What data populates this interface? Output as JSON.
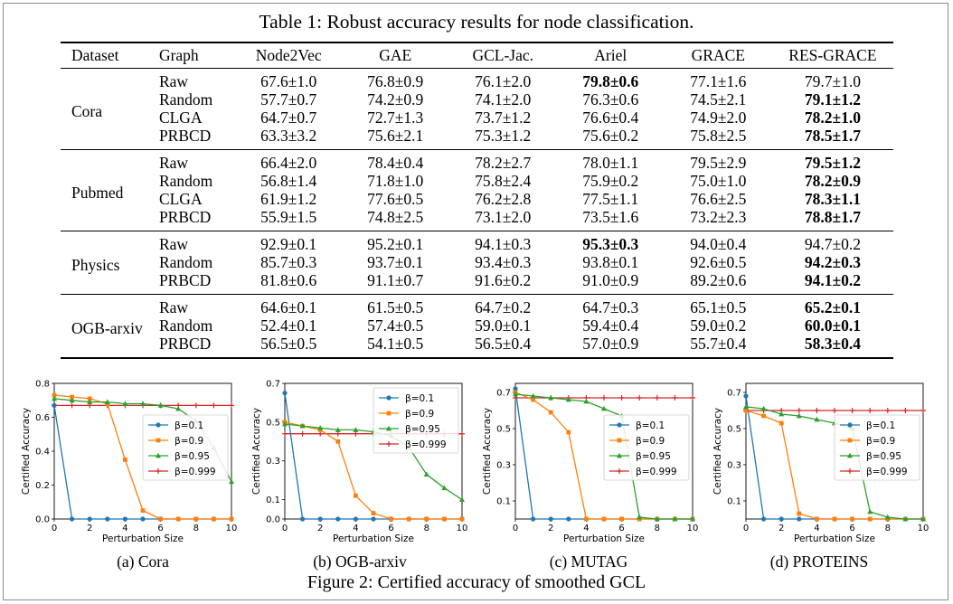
{
  "table": {
    "caption": "Table 1: Robust accuracy results for node classification.",
    "headers": [
      "Dataset",
      "Graph",
      "Node2Vec",
      "GAE",
      "GCL-Jac.",
      "Ariel",
      "GRACE",
      "RES-GRACE"
    ],
    "groups": [
      {
        "dataset": "Cora",
        "rows": [
          {
            "graph": "Raw",
            "cells": [
              "67.6±1.0",
              "76.8±0.9",
              "76.1±2.0",
              "79.8±0.6",
              "77.1±1.6",
              "79.7±1.0"
            ],
            "bold": 3
          },
          {
            "graph": "Random",
            "cells": [
              "57.7±0.7",
              "74.2±0.9",
              "74.1±2.0",
              "76.3±0.6",
              "74.5±2.1",
              "79.1±1.2"
            ],
            "bold": 5
          },
          {
            "graph": "CLGA",
            "cells": [
              "64.7±0.7",
              "72.7±1.3",
              "73.7±1.2",
              "76.6±0.4",
              "74.9±2.0",
              "78.2±1.0"
            ],
            "bold": 5
          },
          {
            "graph": "PRBCD",
            "cells": [
              "63.3±3.2",
              "75.6±2.1",
              "75.3±1.2",
              "75.6±0.2",
              "75.8±2.5",
              "78.5±1.7"
            ],
            "bold": 5
          }
        ]
      },
      {
        "dataset": "Pubmed",
        "rows": [
          {
            "graph": "Raw",
            "cells": [
              "66.4±2.0",
              "78.4±0.4",
              "78.2±2.7",
              "78.0±1.1",
              "79.5±2.9",
              "79.5±1.2"
            ],
            "bold": 5
          },
          {
            "graph": "Random",
            "cells": [
              "56.8±1.4",
              "71.8±1.0",
              "75.8±2.4",
              "75.9±0.2",
              "75.0±1.0",
              "78.2±0.9"
            ],
            "bold": 5
          },
          {
            "graph": "CLGA",
            "cells": [
              "61.9±1.2",
              "77.6±0.5",
              "76.2±2.8",
              "77.5±1.1",
              "76.6±2.5",
              "78.3±1.1"
            ],
            "bold": 5
          },
          {
            "graph": "PRBCD",
            "cells": [
              "55.9±1.5",
              "74.8±2.5",
              "73.1±2.0",
              "73.5±1.6",
              "73.2±2.3",
              "78.8±1.7"
            ],
            "bold": 5
          }
        ]
      },
      {
        "dataset": "Physics",
        "rows": [
          {
            "graph": "Raw",
            "cells": [
              "92.9±0.1",
              "95.2±0.1",
              "94.1±0.3",
              "95.3±0.3",
              "94.0±0.4",
              "94.7±0.2"
            ],
            "bold": 3
          },
          {
            "graph": "Random",
            "cells": [
              "85.7±0.3",
              "93.7±0.1",
              "93.4±0.3",
              "93.8±0.1",
              "92.6±0.5",
              "94.2±0.3"
            ],
            "bold": 5
          },
          {
            "graph": "PRBCD",
            "cells": [
              "81.8±0.6",
              "91.1±0.7",
              "91.6±0.2",
              "91.0±0.9",
              "89.2±0.6",
              "94.1±0.2"
            ],
            "bold": 5
          }
        ]
      },
      {
        "dataset": "OGB-arxiv",
        "rows": [
          {
            "graph": "Raw",
            "cells": [
              "64.6±0.1",
              "61.5±0.5",
              "64.7±0.2",
              "64.7±0.3",
              "65.1±0.5",
              "65.2±0.1"
            ],
            "bold": 5
          },
          {
            "graph": "Random",
            "cells": [
              "52.4±0.1",
              "57.4±0.5",
              "59.0±0.1",
              "59.4±0.4",
              "59.0±0.2",
              "60.0±0.1"
            ],
            "bold": 5
          },
          {
            "graph": "PRBCD",
            "cells": [
              "56.5±0.5",
              "54.1±0.5",
              "56.5±0.4",
              "57.0±0.9",
              "55.7±0.4",
              "58.3±0.4"
            ],
            "bold": 5
          }
        ]
      }
    ]
  },
  "figure": {
    "caption": "Figure 2: Certified accuracy of smoothed GCL",
    "series_colors": [
      "#1f77b4",
      "#ff7f0e",
      "#2ca02c",
      "#d62728"
    ],
    "series_markers": [
      "circle",
      "square",
      "triangle",
      "plus"
    ]
  },
  "chart_data": [
    {
      "type": "line",
      "subcaption": "(a) Cora",
      "xlabel": "Perturbation Size",
      "ylabel": "Certified Accuracy",
      "xlim": [
        0,
        10
      ],
      "ylim": [
        0,
        0.8
      ],
      "xticks": [
        0,
        2,
        4,
        6,
        8,
        10
      ],
      "yticks": [
        0.0,
        0.2,
        0.4,
        0.6,
        0.8
      ],
      "legend_position": "center-right",
      "x": [
        0,
        1,
        2,
        3,
        4,
        5,
        6,
        7,
        8,
        9,
        10
      ],
      "series": [
        {
          "name": "β=0.1",
          "values": [
            0.67,
            0,
            0,
            0,
            0,
            0,
            0,
            0,
            0,
            0,
            0
          ]
        },
        {
          "name": "β=0.9",
          "values": [
            0.73,
            0.72,
            0.71,
            0.68,
            0.35,
            0.05,
            0,
            0,
            0,
            0,
            0
          ]
        },
        {
          "name": "β=0.95",
          "values": [
            0.71,
            0.7,
            0.69,
            0.69,
            0.68,
            0.68,
            0.67,
            0.65,
            0.58,
            0.42,
            0.22
          ]
        },
        {
          "name": "β=0.999",
          "values": [
            0.67,
            0.67,
            0.67,
            0.67,
            0.67,
            0.67,
            0.67,
            0.67,
            0.67,
            0.67,
            0.67
          ]
        }
      ]
    },
    {
      "type": "line",
      "subcaption": "(b) OGB-arxiv",
      "xlabel": "Perturbation Size",
      "ylabel": "Certified Accuracy",
      "xlim": [
        0,
        10
      ],
      "ylim": [
        0,
        0.7
      ],
      "xticks": [
        0,
        2,
        4,
        6,
        8,
        10
      ],
      "yticks": [
        0.0,
        0.1,
        0.3,
        0.5,
        0.7
      ],
      "legend_position": "top-right",
      "x": [
        0,
        1,
        2,
        3,
        4,
        5,
        6,
        7,
        8,
        9,
        10
      ],
      "series": [
        {
          "name": "β=0.1",
          "values": [
            0.65,
            0,
            0,
            0,
            0,
            0,
            0,
            0,
            0,
            0,
            0
          ]
        },
        {
          "name": "β=0.9",
          "values": [
            0.5,
            0.48,
            0.46,
            0.4,
            0.12,
            0.03,
            0,
            0,
            0,
            0,
            0
          ]
        },
        {
          "name": "β=0.95",
          "values": [
            0.49,
            0.48,
            0.47,
            0.46,
            0.46,
            0.45,
            0.43,
            0.37,
            0.23,
            0.16,
            0.1
          ]
        },
        {
          "name": "β=0.999",
          "values": [
            0.44,
            0.44,
            0.44,
            0.44,
            0.44,
            0.44,
            0.44,
            0.44,
            0.44,
            0.44,
            0.44
          ]
        }
      ]
    },
    {
      "type": "line",
      "subcaption": "(c) MUTAG",
      "xlabel": "Perturbation Size",
      "ylabel": "Certified Accuracy",
      "xlim": [
        0,
        10
      ],
      "ylim": [
        0,
        0.75
      ],
      "xticks": [
        0,
        2,
        4,
        6,
        8,
        10
      ],
      "yticks": [
        0.1,
        0.3,
        0.5,
        0.7
      ],
      "legend_position": "center-right",
      "x": [
        0,
        1,
        2,
        3,
        4,
        5,
        6,
        7,
        8,
        9,
        10
      ],
      "series": [
        {
          "name": "β=0.1",
          "values": [
            0.72,
            0,
            0,
            0,
            0,
            0,
            0,
            0,
            0,
            0,
            0
          ]
        },
        {
          "name": "β=0.9",
          "values": [
            0.7,
            0.66,
            0.59,
            0.48,
            0,
            0,
            0,
            0,
            0,
            0,
            0
          ]
        },
        {
          "name": "β=0.95",
          "values": [
            0.69,
            0.68,
            0.67,
            0.66,
            0.65,
            0.61,
            0.57,
            0.01,
            0,
            0,
            0
          ]
        },
        {
          "name": "β=0.999",
          "values": [
            0.67,
            0.67,
            0.67,
            0.67,
            0.67,
            0.67,
            0.67,
            0.67,
            0.67,
            0.67,
            0.67
          ]
        }
      ]
    },
    {
      "type": "line",
      "subcaption": "(d) PROTEINS",
      "xlabel": "Perturbation Size",
      "ylabel": "Certified Accuracy",
      "xlim": [
        0,
        10
      ],
      "ylim": [
        0,
        0.75
      ],
      "xticks": [
        0,
        2,
        4,
        6,
        8,
        10
      ],
      "yticks": [
        0.1,
        0.3,
        0.5,
        0.7
      ],
      "legend_position": "center-right",
      "x": [
        0,
        1,
        2,
        3,
        4,
        5,
        6,
        7,
        8,
        9,
        10
      ],
      "series": [
        {
          "name": "β=0.1",
          "values": [
            0.68,
            0,
            0,
            0,
            0,
            0,
            0,
            0,
            0,
            0,
            0
          ]
        },
        {
          "name": "β=0.9",
          "values": [
            0.6,
            0.57,
            0.53,
            0.03,
            0,
            0,
            0,
            0,
            0,
            0,
            0
          ]
        },
        {
          "name": "β=0.95",
          "values": [
            0.62,
            0.61,
            0.58,
            0.57,
            0.55,
            0.53,
            0.5,
            0.04,
            0.01,
            0,
            0
          ]
        },
        {
          "name": "β=0.999",
          "values": [
            0.6,
            0.6,
            0.6,
            0.6,
            0.6,
            0.6,
            0.6,
            0.6,
            0.6,
            0.6,
            0.6
          ]
        }
      ]
    }
  ]
}
